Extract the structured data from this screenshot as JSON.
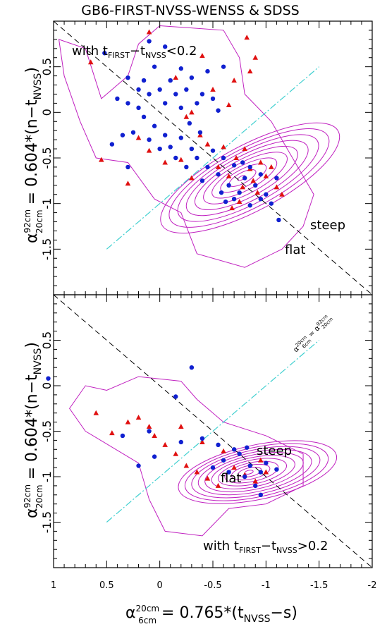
{
  "title": "GB6-FIRST-NVSS-WENSS & SDSS",
  "colors": {
    "contour": "#c020c0",
    "triangle": "#e01010",
    "circle": "#1020d0",
    "dashdot": "#40d0d0",
    "dashed": "#000000"
  },
  "y_label": {
    "alpha": "α",
    "sup": "92cm",
    "sub": "20cm",
    "expr": " = 0.604*(n−t",
    "sub2": "NVSS",
    "close": ")"
  },
  "x_label": {
    "alpha": "α",
    "sup": "20cm",
    "sub": "6cm",
    "expr": " = 0.765*(t",
    "sub2": "NVSS",
    "close": "−s)"
  },
  "chart_data": [
    {
      "type": "scatter",
      "panel": "top",
      "annotation": {
        "pre": "with t",
        "s1": "FIRST",
        "mid": "−t",
        "s2": "NVSS",
        "post": "<0.2"
      },
      "region_labels": [
        "steep",
        "flat"
      ],
      "xlim": [
        1,
        -2
      ],
      "ylim": [
        1.0,
        -2.0
      ],
      "yticks": [
        "-1.5",
        "-1",
        "-0.5",
        "0",
        "0.5"
      ],
      "reference_lines": [
        "y = x (dashed)",
        "separator flat/steep (dash-dot)"
      ],
      "series": [
        {
          "marker": "triangle",
          "points": [
            [
              0.3,
              -0.78
            ],
            [
              -0.3,
              -0.72
            ],
            [
              -0.55,
              -0.6
            ],
            [
              -0.65,
              -0.7
            ],
            [
              -0.72,
              -0.5
            ],
            [
              -0.78,
              -0.82
            ],
            [
              -0.85,
              -0.62
            ],
            [
              -0.88,
              -0.75
            ],
            [
              -0.92,
              -0.88
            ],
            [
              -0.95,
              -0.55
            ],
            [
              -1.0,
              -0.7
            ],
            [
              -1.05,
              -0.6
            ],
            [
              -1.1,
              -0.82
            ],
            [
              -1.15,
              -0.9
            ],
            [
              -0.6,
              -0.38
            ],
            [
              -0.45,
              -0.35
            ],
            [
              -0.38,
              -0.25
            ],
            [
              -0.25,
              -0.05
            ],
            [
              -0.2,
              -0.52
            ],
            [
              -0.05,
              -0.55
            ],
            [
              0.1,
              -0.42
            ],
            [
              0.2,
              -0.28
            ],
            [
              -0.65,
              0.08
            ],
            [
              -0.5,
              0.25
            ],
            [
              -0.7,
              0.35
            ],
            [
              -0.85,
              0.45
            ],
            [
              -0.9,
              0.6
            ],
            [
              -0.82,
              0.82
            ],
            [
              -0.4,
              0.62
            ],
            [
              -0.15,
              0.38
            ],
            [
              0.1,
              0.88
            ],
            [
              0.55,
              -0.52
            ],
            [
              0.65,
              0.55
            ],
            [
              -0.3,
              0.0
            ],
            [
              -0.75,
              -0.98
            ],
            [
              -0.68,
              -1.05
            ],
            [
              -0.8,
              -0.4
            ]
          ]
        },
        {
          "marker": "circle",
          "points": [
            [
              -1.12,
              -1.18
            ],
            [
              -1.05,
              -1.0
            ],
            [
              -0.95,
              -0.95
            ],
            [
              -0.9,
              -0.8
            ],
            [
              -0.85,
              -0.6
            ],
            [
              -0.8,
              -0.72
            ],
            [
              -0.75,
              -0.88
            ],
            [
              -0.7,
              -0.58
            ],
            [
              -0.65,
              -0.8
            ],
            [
              -0.6,
              -0.5
            ],
            [
              -0.55,
              -0.68
            ],
            [
              -0.5,
              -0.42
            ],
            [
              -0.45,
              -0.6
            ],
            [
              -0.4,
              -0.75
            ],
            [
              -0.35,
              -0.5
            ],
            [
              -0.3,
              -0.4
            ],
            [
              -0.25,
              -0.6
            ],
            [
              -0.2,
              -0.28
            ],
            [
              -0.15,
              -0.5
            ],
            [
              -0.1,
              -0.38
            ],
            [
              -0.05,
              -0.25
            ],
            [
              0.0,
              -0.4
            ],
            [
              0.05,
              -0.15
            ],
            [
              0.1,
              -0.3
            ],
            [
              0.15,
              -0.05
            ],
            [
              0.2,
              0.05
            ],
            [
              0.25,
              -0.22
            ],
            [
              0.3,
              0.1
            ],
            [
              0.35,
              -0.25
            ],
            [
              0.4,
              0.15
            ],
            [
              0.45,
              -0.35
            ],
            [
              0.1,
              0.2
            ],
            [
              0.0,
              0.25
            ],
            [
              -0.05,
              0.1
            ],
            [
              -0.1,
              0.35
            ],
            [
              -0.15,
              0.2
            ],
            [
              -0.2,
              0.05
            ],
            [
              -0.25,
              0.25
            ],
            [
              -0.3,
              0.38
            ],
            [
              -0.35,
              0.1
            ],
            [
              -0.4,
              0.2
            ],
            [
              -0.45,
              0.45
            ],
            [
              -0.5,
              0.15
            ],
            [
              -0.55,
              0.02
            ],
            [
              -0.6,
              0.5
            ],
            [
              -0.2,
              0.48
            ],
            [
              0.05,
              0.5
            ],
            [
              0.15,
              0.35
            ],
            [
              0.2,
              0.25
            ],
            [
              0.3,
              0.38
            ],
            [
              0.1,
              0.78
            ],
            [
              -0.05,
              0.72
            ],
            [
              -0.62,
              -0.98
            ],
            [
              -0.85,
              -1.02
            ],
            [
              -1.0,
              -0.9
            ],
            [
              -1.1,
              -0.72
            ],
            [
              -0.95,
              -0.68
            ],
            [
              -0.78,
              -0.55
            ],
            [
              -0.7,
              -0.95
            ],
            [
              -0.58,
              -0.88
            ],
            [
              -0.38,
              -0.22
            ],
            [
              -0.28,
              -0.12
            ],
            [
              0.52,
              0.65
            ],
            [
              0.3,
              -0.6
            ]
          ]
        }
      ]
    },
    {
      "type": "scatter",
      "panel": "bottom",
      "annotation": {
        "pre": "with t",
        "s1": "FIRST",
        "mid": "−t",
        "s2": "NVSS",
        "post": ">0.2"
      },
      "region_labels": [
        "steep",
        "flat"
      ],
      "line_label": {
        "pre": "α",
        "sup1": "20cm",
        "sub1": "6cm",
        "eq": " = α",
        "sup2": "92cm",
        "sub2": "20cm"
      },
      "xlabel_ticks": [
        "1",
        "0.5",
        "0",
        "-0.5",
        "-1",
        "-1.5",
        "-2"
      ],
      "xlim": [
        1,
        -2
      ],
      "ylim": [
        1.0,
        -2.0
      ],
      "yticks": [
        "-1.5",
        "-1",
        "-0.5",
        "0",
        "0.5"
      ],
      "reference_lines": [
        "y = x (dashed)",
        "separator flat/steep (dash-dot)"
      ],
      "series": [
        {
          "marker": "triangle",
          "points": [
            [
              -0.55,
              -1.1
            ],
            [
              -0.45,
              -1.02
            ],
            [
              -0.35,
              -0.95
            ],
            [
              -0.25,
              -0.88
            ],
            [
              -0.15,
              -0.75
            ],
            [
              -0.05,
              -0.65
            ],
            [
              0.05,
              -0.55
            ],
            [
              0.1,
              -0.45
            ],
            [
              0.2,
              -0.35
            ],
            [
              0.3,
              -0.4
            ],
            [
              0.45,
              -0.52
            ],
            [
              0.6,
              -0.3
            ],
            [
              -0.2,
              -0.45
            ],
            [
              -0.4,
              -0.62
            ],
            [
              -0.6,
              -0.72
            ],
            [
              -0.7,
              -0.9
            ],
            [
              -0.8,
              -0.98
            ],
            [
              -0.9,
              -1.05
            ],
            [
              -1.0,
              -0.95
            ],
            [
              -0.95,
              -0.82
            ]
          ]
        },
        {
          "marker": "circle",
          "points": [
            [
              -0.5,
              -0.9
            ],
            [
              -0.6,
              -0.82
            ],
            [
              -0.65,
              -0.95
            ],
            [
              -0.75,
              -0.75
            ],
            [
              -0.8,
              -1.0
            ],
            [
              -0.85,
              -0.88
            ],
            [
              -0.9,
              -1.1
            ],
            [
              -0.95,
              -0.95
            ],
            [
              -1.0,
              -0.85
            ],
            [
              -1.1,
              -0.92
            ],
            [
              -0.7,
              -0.7
            ],
            [
              -0.55,
              -0.65
            ],
            [
              -0.4,
              -0.58
            ],
            [
              -0.2,
              -0.62
            ],
            [
              0.05,
              -0.78
            ],
            [
              0.2,
              -0.88
            ],
            [
              0.35,
              -0.55
            ],
            [
              0.1,
              -0.5
            ],
            [
              -0.3,
              0.2
            ],
            [
              -0.15,
              -0.12
            ],
            [
              1.05,
              0.08
            ],
            [
              -0.95,
              -1.2
            ],
            [
              -0.82,
              -0.68
            ]
          ]
        }
      ]
    }
  ]
}
